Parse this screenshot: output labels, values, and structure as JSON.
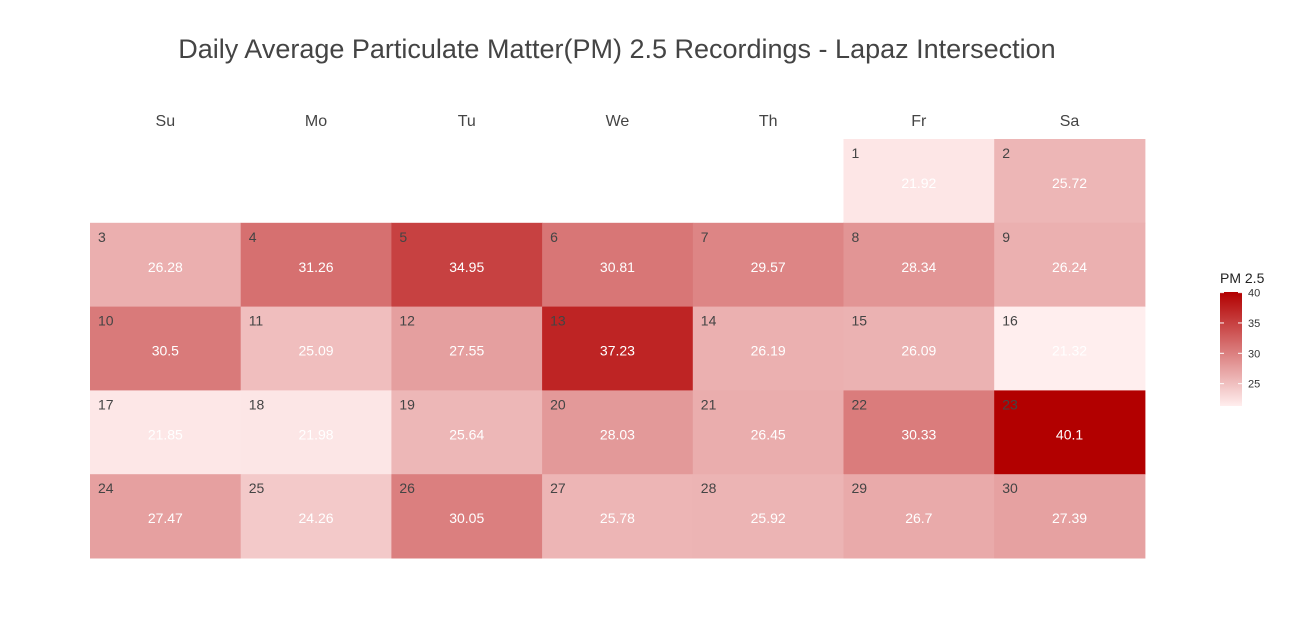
{
  "chart_data": {
    "type": "heatmap",
    "title": "Daily Average Particulate Matter(PM) 2.5 Recordings - Lapaz Intersection",
    "weekdays": [
      "Su",
      "Mo",
      "Tu",
      "We",
      "Th",
      "Fr",
      "Sa"
    ],
    "first_weekday_index": 5,
    "days": [
      {
        "day": 1,
        "value": 21.92
      },
      {
        "day": 2,
        "value": 25.72
      },
      {
        "day": 3,
        "value": 26.28
      },
      {
        "day": 4,
        "value": 31.26
      },
      {
        "day": 5,
        "value": 34.95
      },
      {
        "day": 6,
        "value": 30.81
      },
      {
        "day": 7,
        "value": 29.57
      },
      {
        "day": 8,
        "value": 28.34
      },
      {
        "day": 9,
        "value": 26.24
      },
      {
        "day": 10,
        "value": 30.5
      },
      {
        "day": 11,
        "value": 25.09
      },
      {
        "day": 12,
        "value": 27.55
      },
      {
        "day": 13,
        "value": 37.23
      },
      {
        "day": 14,
        "value": 26.19
      },
      {
        "day": 15,
        "value": 26.09
      },
      {
        "day": 16,
        "value": 21.32
      },
      {
        "day": 17,
        "value": 21.85
      },
      {
        "day": 18,
        "value": 21.98
      },
      {
        "day": 19,
        "value": 25.64
      },
      {
        "day": 20,
        "value": 28.03
      },
      {
        "day": 21,
        "value": 26.45
      },
      {
        "day": 22,
        "value": 30.33
      },
      {
        "day": 23,
        "value": 40.1
      },
      {
        "day": 24,
        "value": 27.47
      },
      {
        "day": 25,
        "value": 24.26
      },
      {
        "day": 26,
        "value": 30.05
      },
      {
        "day": 27,
        "value": 25.78
      },
      {
        "day": 28,
        "value": 25.92
      },
      {
        "day": 29,
        "value": 26.7
      },
      {
        "day": 30,
        "value": 27.39
      }
    ],
    "legend": {
      "title": "PM 2.5",
      "ticks": [
        25,
        30,
        35,
        40
      ],
      "range": [
        21.32,
        40.1
      ]
    },
    "colors": {
      "low": "#ffeeee",
      "high": "#b20000"
    }
  }
}
